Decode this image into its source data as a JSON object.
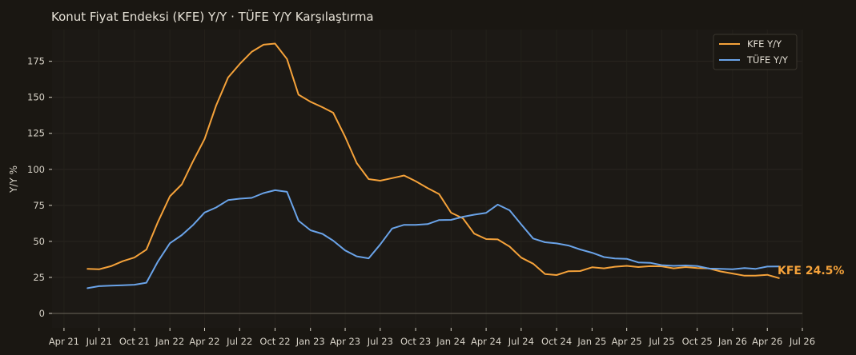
{
  "chart_data": {
    "type": "line",
    "title": "Konut Fiyat Endeksi (KFE) Y/Y · TÜFE Y/Y Karşılaştırma",
    "xlabel": "",
    "ylabel": "Y/Y %",
    "x_range": [
      "2021-03-01",
      "2026-07-01"
    ],
    "ylim": [
      -10,
      197
    ],
    "y_ticks": [
      0,
      25,
      50,
      75,
      100,
      125,
      150,
      175
    ],
    "x_ticks": [
      {
        "date": "2021-04-01",
        "label": "Apr 21"
      },
      {
        "date": "2021-07-01",
        "label": "Jul 21"
      },
      {
        "date": "2021-10-01",
        "label": "Oct 21"
      },
      {
        "date": "2022-01-01",
        "label": "Jan 22"
      },
      {
        "date": "2022-04-01",
        "label": "Apr 22"
      },
      {
        "date": "2022-07-01",
        "label": "Jul 22"
      },
      {
        "date": "2022-10-01",
        "label": "Oct 22"
      },
      {
        "date": "2023-01-01",
        "label": "Jan 23"
      },
      {
        "date": "2023-04-01",
        "label": "Apr 23"
      },
      {
        "date": "2023-07-01",
        "label": "Jul 23"
      },
      {
        "date": "2023-10-01",
        "label": "Oct 23"
      },
      {
        "date": "2024-01-01",
        "label": "Jan 24"
      },
      {
        "date": "2024-04-01",
        "label": "Apr 24"
      },
      {
        "date": "2024-07-01",
        "label": "Jul 24"
      },
      {
        "date": "2024-10-01",
        "label": "Oct 24"
      },
      {
        "date": "2025-01-01",
        "label": "Jan 25"
      },
      {
        "date": "2025-04-01",
        "label": "Apr 25"
      },
      {
        "date": "2025-07-01",
        "label": "Jul 25"
      },
      {
        "date": "2025-10-01",
        "label": "Oct 25"
      },
      {
        "date": "2026-01-01",
        "label": "Jan 26"
      },
      {
        "date": "2026-04-01",
        "label": "Apr 26"
      },
      {
        "date": "2026-07-01",
        "label": "Jul 26"
      }
    ],
    "grid": true,
    "legend_position": "top-right",
    "x": [
      "2021-06",
      "2021-07",
      "2021-08",
      "2021-09",
      "2021-10",
      "2021-11",
      "2021-12",
      "2022-01",
      "2022-02",
      "2022-03",
      "2022-04",
      "2022-05",
      "2022-06",
      "2022-07",
      "2022-08",
      "2022-09",
      "2022-10",
      "2022-11",
      "2022-12",
      "2023-01",
      "2023-02",
      "2023-03",
      "2023-04",
      "2023-05",
      "2023-06",
      "2023-07",
      "2023-08",
      "2023-09",
      "2023-10",
      "2023-11",
      "2023-12",
      "2024-01",
      "2024-02",
      "2024-03",
      "2024-04",
      "2024-05",
      "2024-06",
      "2024-07",
      "2024-08",
      "2024-09",
      "2024-10",
      "2024-11",
      "2024-12",
      "2025-01",
      "2025-02",
      "2025-03",
      "2025-04",
      "2025-05",
      "2025-06",
      "2025-07",
      "2025-08",
      "2025-09",
      "2025-10",
      "2025-11",
      "2025-12",
      "2026-01",
      "2026-02",
      "2026-03",
      "2026-04",
      "2026-05"
    ],
    "series": [
      {
        "name": "KFE Y/Y",
        "color": "#f5a23a",
        "values": [
          30.9,
          30.6,
          32.8,
          36.3,
          38.8,
          44.3,
          63.6,
          81.3,
          89.6,
          105.1,
          121.1,
          144.3,
          163.7,
          173.1,
          181.5,
          186.5,
          187.3,
          176.6,
          151.8,
          146.9,
          143.1,
          139.3,
          122.6,
          104.3,
          93.2,
          92.1,
          93.9,
          95.7,
          91.8,
          87.0,
          82.8,
          69.9,
          66.0,
          55.4,
          51.6,
          51.4,
          46.4,
          38.7,
          34.5,
          27.3,
          26.6,
          29.3,
          29.4,
          32.0,
          31.3,
          32.4,
          33.0,
          32.2,
          32.8,
          32.7,
          31.3,
          32.2,
          31.5,
          31.2,
          29.1,
          27.7,
          26.2,
          26.2,
          26.8,
          24.5
        ]
      },
      {
        "name": "TÜFE Y/Y",
        "color": "#6aa3e8",
        "values": [
          17.5,
          18.9,
          19.3,
          19.6,
          19.9,
          21.3,
          36.1,
          48.7,
          54.4,
          61.1,
          70.0,
          73.5,
          78.6,
          79.6,
          80.2,
          83.5,
          85.5,
          84.4,
          64.3,
          57.7,
          55.2,
          50.5,
          43.7,
          39.6,
          38.2,
          47.8,
          58.9,
          61.5,
          61.4,
          62.0,
          64.8,
          64.9,
          67.1,
          68.5,
          69.8,
          75.5,
          71.6,
          61.8,
          52.0,
          49.4,
          48.6,
          47.1,
          44.4,
          42.1,
          39.1,
          38.1,
          37.9,
          35.4,
          35.1,
          33.5,
          33.0,
          33.3,
          32.9,
          31.1,
          30.9,
          30.7,
          31.5,
          30.9,
          32.5,
          32.6
        ]
      }
    ],
    "annotations": [
      {
        "text": "KFE 24.5%",
        "series": "KFE Y/Y",
        "color": "#f5a23a"
      }
    ]
  }
}
